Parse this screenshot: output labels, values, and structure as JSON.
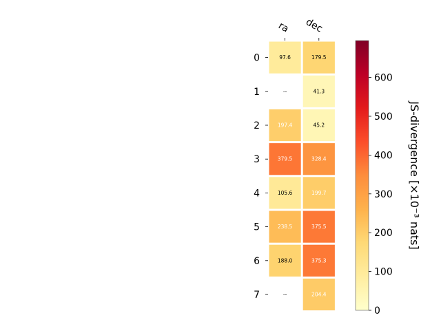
{
  "chart_data": {
    "type": "heatmap",
    "columns": [
      "ra",
      "dec"
    ],
    "rows": [
      "0",
      "1",
      "2",
      "3",
      "4",
      "5",
      "6",
      "7"
    ],
    "values": [
      [
        97.6,
        179.5
      ],
      [
        null,
        41.3
      ],
      [
        197.4,
        45.2
      ],
      [
        379.5,
        328.4
      ],
      [
        105.6,
        199.7
      ],
      [
        238.5,
        375.5
      ],
      [
        188.0,
        375.3
      ],
      [
        null,
        204.4
      ]
    ],
    "cell_labels": [
      [
        "97.6",
        "179.5"
      ],
      [
        "--",
        "41.3"
      ],
      [
        "197.4",
        "45.2"
      ],
      [
        "379.5",
        "328.4"
      ],
      [
        "105.6",
        "199.7"
      ],
      [
        "238.5",
        "375.5"
      ],
      [
        "188.0",
        "375.3"
      ],
      [
        "--",
        "204.4"
      ]
    ],
    "colorbar": {
      "label": "JS-divergence [×10⁻³ nats]",
      "ticks": [
        "0",
        "100",
        "200",
        "300",
        "400",
        "500",
        "600"
      ],
      "range": [
        0,
        695
      ],
      "colormap": "YlOrRd",
      "colors": [
        "#ffffcc",
        "#ffeda0",
        "#fed976",
        "#feb24c",
        "#fd8d3c",
        "#fc4e2a",
        "#e31a1c",
        "#bd0026",
        "#800026"
      ]
    },
    "light_text_threshold": 190,
    "grid": false
  }
}
